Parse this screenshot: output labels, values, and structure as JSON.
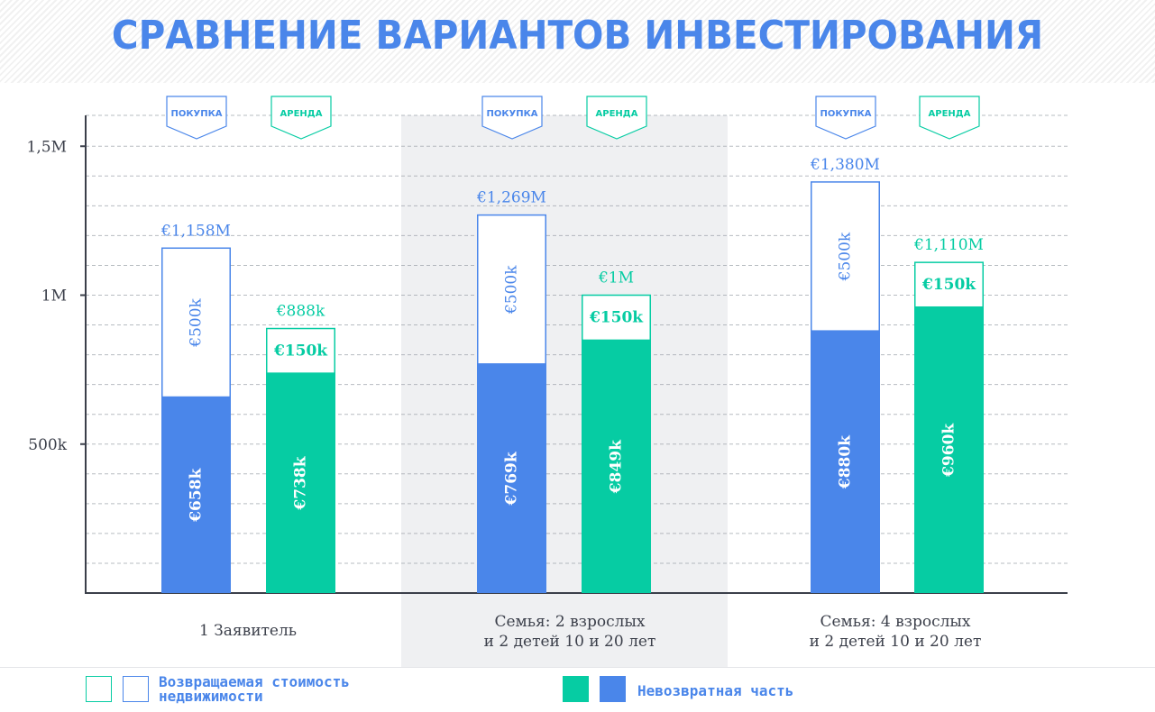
{
  "title": "СРАВНЕНИЕ ВАРИАНТОВ ИНВЕСТИРОВАНИЯ",
  "colors": {
    "buy": "#4a86ea",
    "rent": "#06cca3",
    "grid": "#9aa0a8",
    "axis": "#3b3f4a",
    "shade": "#eff0f2"
  },
  "chart_data": {
    "type": "bar",
    "stacked": true,
    "yticks": [
      "500k",
      "1M",
      "1,5M"
    ],
    "ytick_values": [
      500000,
      1000000,
      1500000
    ],
    "ylim": [
      0,
      1600000
    ],
    "grid": true,
    "groups": [
      {
        "label_lines": [
          "1 Заявитель"
        ],
        "bars": [
          {
            "tag": "ПОКУПКА",
            "kind": "buy",
            "bottom_value": 658000,
            "top_value": 500000,
            "total": 1158000,
            "bottom_label": "€658k",
            "top_label": "€500k",
            "total_label": "€1,158M"
          },
          {
            "tag": "АРЕНДА",
            "kind": "rent",
            "bottom_value": 738000,
            "top_value": 150000,
            "total": 888000,
            "bottom_label": "€738k",
            "top_label": "€150k",
            "total_label": "€888k"
          }
        ]
      },
      {
        "label_lines": [
          "Семья: 2 взрослых",
          "и 2 детей 10 и 20 лет"
        ],
        "shaded": true,
        "bars": [
          {
            "tag": "ПОКУПКА",
            "kind": "buy",
            "bottom_value": 769000,
            "top_value": 500000,
            "total": 1269000,
            "bottom_label": "€769k",
            "top_label": "€500k",
            "total_label": "€1,269M"
          },
          {
            "tag": "АРЕНДА",
            "kind": "rent",
            "bottom_value": 849000,
            "top_value": 150000,
            "total": 1000000,
            "bottom_label": "€849k",
            "top_label": "€150k",
            "total_label": "€1M"
          }
        ]
      },
      {
        "label_lines": [
          "Семья: 4 взрослых",
          "и 2 детей 10 и 20 лет"
        ],
        "bars": [
          {
            "tag": "ПОКУПКА",
            "kind": "buy",
            "bottom_value": 880000,
            "top_value": 500000,
            "total": 1380000,
            "bottom_label": "€880k",
            "top_label": "€500k",
            "total_label": "€1,380M"
          },
          {
            "tag": "АРЕНДА",
            "kind": "rent",
            "bottom_value": 960000,
            "top_value": 150000,
            "total": 1110000,
            "bottom_label": "€960k",
            "top_label": "€150k",
            "total_label": "€1,110M"
          }
        ]
      }
    ],
    "legend": [
      {
        "label": "Возвращаемая стоимость недвижимости",
        "style": "outline"
      },
      {
        "label": "Невозвратная часть",
        "style": "filled"
      }
    ]
  }
}
